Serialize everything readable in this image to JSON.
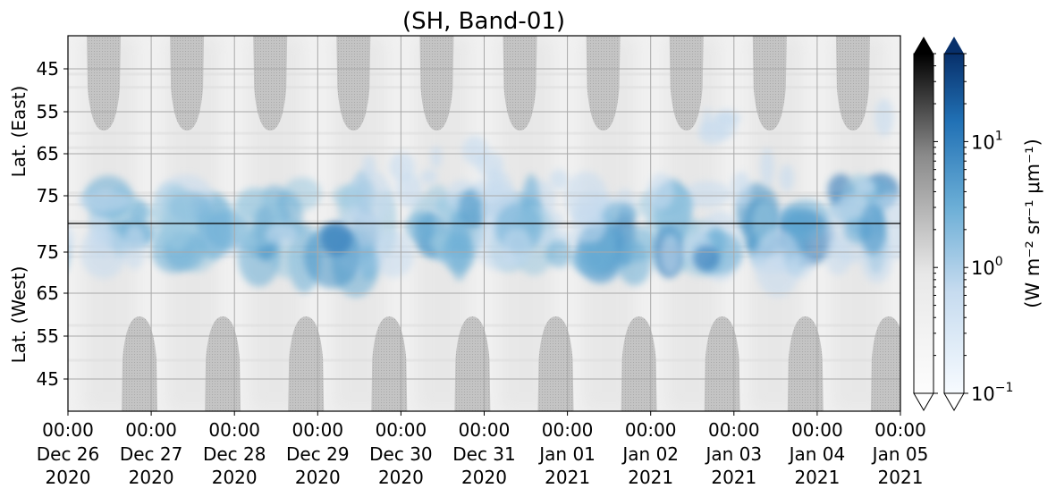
{
  "chart_data": {
    "type": "heatmap",
    "title": "(SH, Band-01)",
    "ylabel_top": "Lat. (East)",
    "ylabel_bottom": "Lat. (West)",
    "y_ticks_top": [
      "45",
      "55",
      "65",
      "75"
    ],
    "y_ticks_bottom": [
      "75",
      "65",
      "55",
      "45"
    ],
    "x_ticks": [
      {
        "time": "00:00",
        "date": "Dec 26",
        "year": "2020"
      },
      {
        "time": "00:00",
        "date": "Dec 27",
        "year": "2020"
      },
      {
        "time": "00:00",
        "date": "Dec 28",
        "year": "2020"
      },
      {
        "time": "00:00",
        "date": "Dec 29",
        "year": "2020"
      },
      {
        "time": "00:00",
        "date": "Dec 30",
        "year": "2020"
      },
      {
        "time": "00:00",
        "date": "Dec 31",
        "year": "2020"
      },
      {
        "time": "00:00",
        "date": "Jan 01",
        "year": "2021"
      },
      {
        "time": "00:00",
        "date": "Jan 02",
        "year": "2021"
      },
      {
        "time": "00:00",
        "date": "Jan 03",
        "year": "2021"
      },
      {
        "time": "00:00",
        "date": "Jan 04",
        "year": "2021"
      },
      {
        "time": "00:00",
        "date": "Jan 05",
        "year": "2021"
      }
    ],
    "x_range": [
      "2020-12-26 00:00",
      "2021-01-05 00:00"
    ],
    "grid": true,
    "log_scale": true,
    "colorbar_ticks": [
      {
        "base": "10",
        "exp": "1",
        "value": 10
      },
      {
        "base": "10",
        "exp": "0",
        "value": 1
      },
      {
        "base": "10",
        "exp": "−1",
        "value": 0.1
      }
    ],
    "colorbar_range": [
      0.1,
      50
    ],
    "colorbar_label": "(W m⁻² sr⁻¹ μm⁻¹)",
    "colormaps": [
      "gray (background)",
      "blues (aurora)"
    ],
    "colors": {
      "aurora_dark": "#08306b",
      "aurora_mid": "#4292c6",
      "aurora_light": "#c6dbef",
      "mask": "#bdbdbd",
      "background": "#f2f2f2"
    },
    "peak_emission_days": [
      "Dec 29",
      "Jan 02",
      "Jan 03",
      "Jan 04"
    ]
  }
}
